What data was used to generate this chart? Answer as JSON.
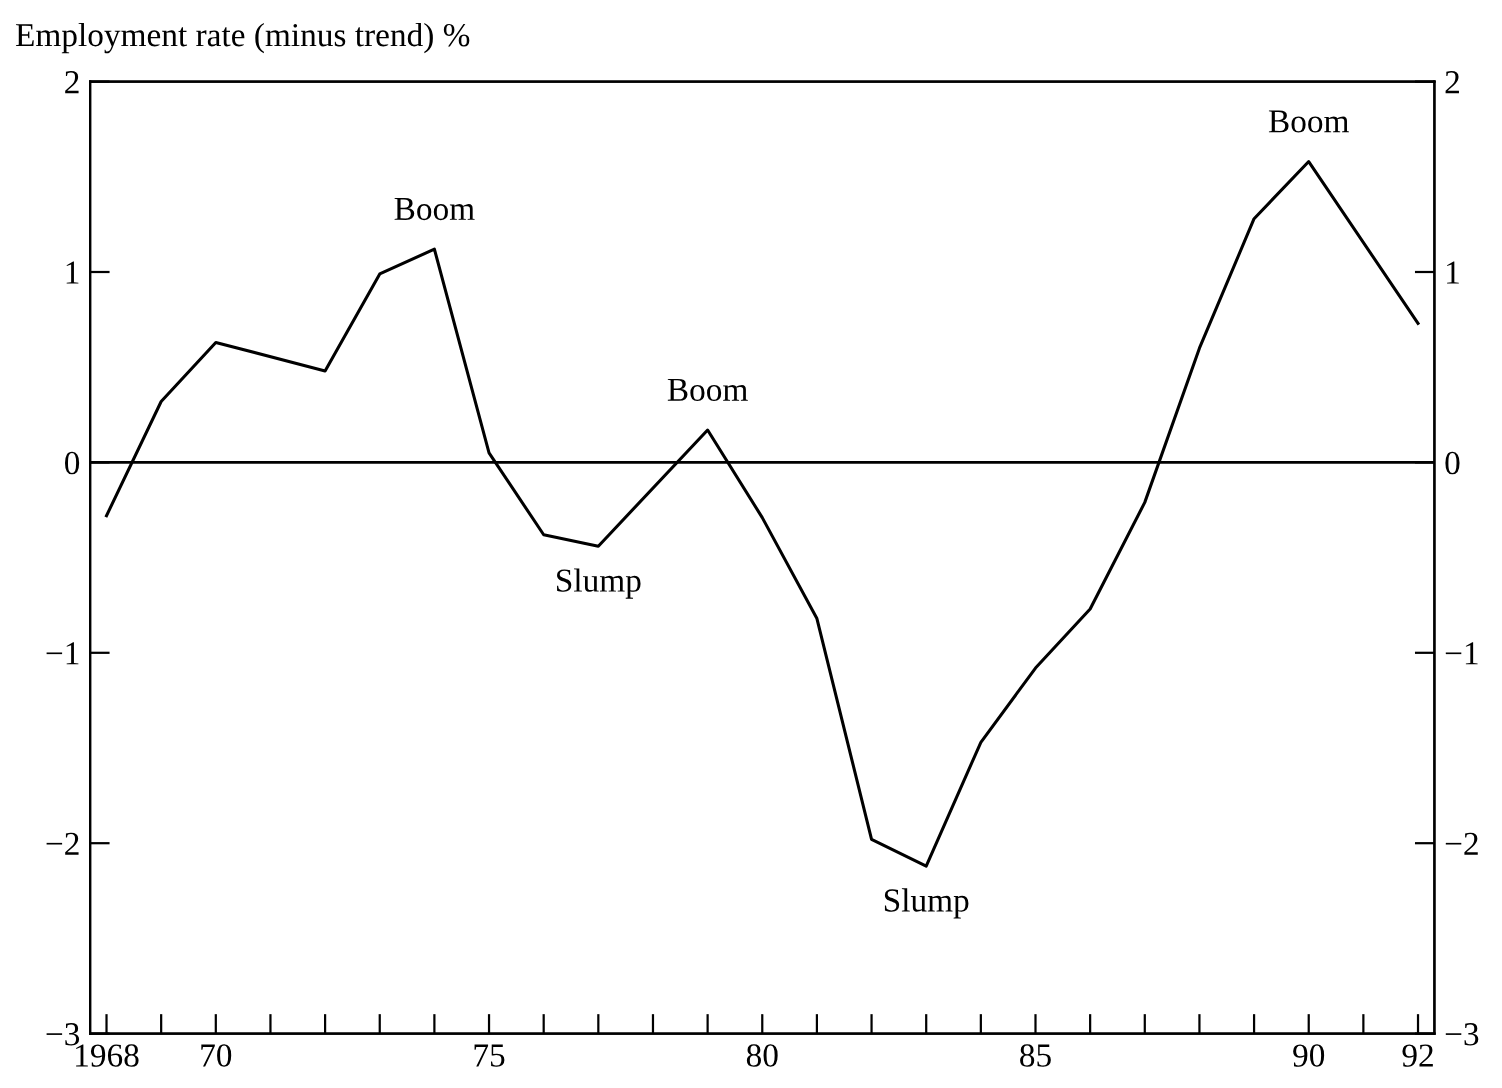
{
  "chart_data": {
    "type": "line",
    "ylabel": "Employment rate (minus trend) %",
    "x": [
      1968,
      1969,
      1970,
      1972,
      1973,
      1974,
      1975,
      1976,
      1977,
      1979,
      1980,
      1981,
      1982,
      1983,
      1984,
      1985,
      1986,
      1987,
      1988,
      1989,
      1990,
      1992
    ],
    "series": [
      {
        "color": "#000000",
        "values": [
          -0.28,
          0.32,
          0.63,
          0.48,
          0.99,
          1.12,
          0.05,
          -0.38,
          -0.44,
          0.17,
          -0.29,
          -0.82,
          -1.98,
          -2.12,
          -1.47,
          -1.08,
          -0.77,
          -0.21,
          0.6,
          1.28,
          1.58,
          0.73
        ]
      }
    ],
    "xlim": [
      1967.7,
      1992.3
    ],
    "ylim": [
      -3,
      2
    ],
    "xticks": [
      {
        "value": 1968,
        "label": "1968"
      },
      {
        "value": 1969,
        "label": null
      },
      {
        "value": 1970,
        "label": "70"
      },
      {
        "value": 1971,
        "label": null
      },
      {
        "value": 1972,
        "label": null
      },
      {
        "value": 1973,
        "label": null
      },
      {
        "value": 1974,
        "label": null
      },
      {
        "value": 1975,
        "label": "75"
      },
      {
        "value": 1976,
        "label": null
      },
      {
        "value": 1977,
        "label": null
      },
      {
        "value": 1978,
        "label": null
      },
      {
        "value": 1979,
        "label": null
      },
      {
        "value": 1980,
        "label": "80"
      },
      {
        "value": 1981,
        "label": null
      },
      {
        "value": 1982,
        "label": null
      },
      {
        "value": 1983,
        "label": null
      },
      {
        "value": 1984,
        "label": null
      },
      {
        "value": 1985,
        "label": "85"
      },
      {
        "value": 1986,
        "label": null
      },
      {
        "value": 1987,
        "label": null
      },
      {
        "value": 1988,
        "label": null
      },
      {
        "value": 1989,
        "label": null
      },
      {
        "value": 1990,
        "label": "90"
      },
      {
        "value": 1991,
        "label": null
      },
      {
        "value": 1992,
        "label": "92"
      }
    ],
    "yticks": [
      -3,
      -2,
      -1,
      0,
      1,
      2
    ],
    "y2lim": [
      -3,
      2
    ],
    "y2ticks": [
      -3,
      -2,
      -1,
      0,
      1,
      2
    ],
    "ref_lines": [
      {
        "axis": "y",
        "value": 0,
        "color": "#000000"
      }
    ],
    "annotations": [
      {
        "text": "Boom",
        "x": 1974,
        "y": 1.12
      },
      {
        "text": "Slump",
        "x": 1977,
        "y": -0.44
      },
      {
        "text": "Boom",
        "x": 1979,
        "y": 0.17
      },
      {
        "text": "Slump",
        "x": 1983,
        "y": -2.12
      },
      {
        "text": "Boom",
        "x": 1990,
        "y": 1.58
      }
    ],
    "grid": false,
    "legend": false,
    "marker": "none",
    "line_style": "solid"
  }
}
